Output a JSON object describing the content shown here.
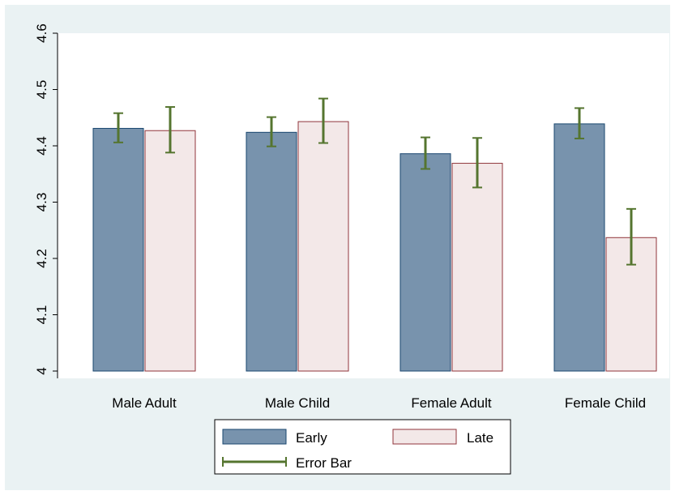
{
  "colors": {
    "background": "#eaf2f3",
    "plot_background": "#ffffff",
    "early_fill": "#7893ad",
    "early_stroke": "#1a476f",
    "late_fill": "#f3e8e8",
    "late_stroke": "#90353b",
    "error_bar": "#55752f"
  },
  "chart_data": {
    "type": "bar",
    "title": "",
    "xlabel": "",
    "ylabel": "",
    "categories": [
      "Male Adult",
      "Male Child",
      "Female Adult",
      "Female Child"
    ],
    "ylim": [
      4,
      4.6
    ],
    "yticks": [
      "4",
      "4.1",
      "4.2",
      "4.3",
      "4.4",
      "4.5",
      "4.6"
    ],
    "grid": false,
    "series": [
      {
        "name": "Early",
        "values": [
          4.431,
          4.424,
          4.386,
          4.439
        ],
        "error_low": [
          4.406,
          4.399,
          4.359,
          4.413
        ],
        "error_high": [
          4.458,
          4.451,
          4.415,
          4.467
        ]
      },
      {
        "name": "Late",
        "values": [
          4.427,
          4.443,
          4.369,
          4.237
        ],
        "error_low": [
          4.388,
          4.405,
          4.326,
          4.189
        ],
        "error_high": [
          4.469,
          4.484,
          4.414,
          4.288
        ]
      }
    ],
    "legend": {
      "position": "bottom",
      "entries": [
        "Early",
        "Late",
        "Error Bar"
      ]
    }
  }
}
